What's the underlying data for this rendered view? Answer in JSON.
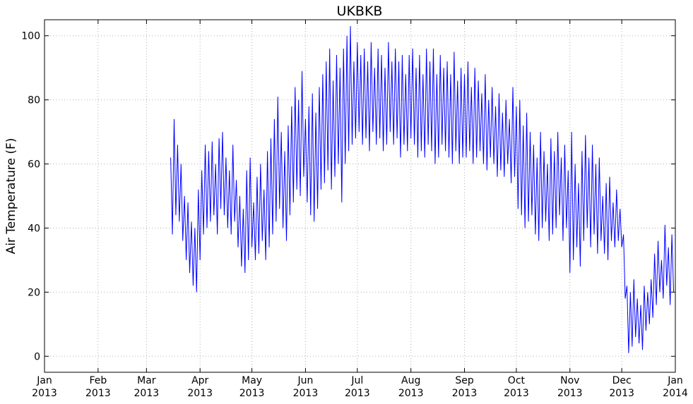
{
  "chart_data": {
    "type": "line",
    "title": "UKBKB",
    "y_label": "Air Temperature (F)",
    "color": "#0000ff",
    "grid": true,
    "xlim": [
      0,
      365
    ],
    "ylim": [
      -5,
      105
    ],
    "xticks": [
      {
        "value": 0,
        "label": "Jan 2013"
      },
      {
        "value": 31,
        "label": "Feb 2013"
      },
      {
        "value": 59,
        "label": "Mar 2013"
      },
      {
        "value": 90,
        "label": "Apr 2013"
      },
      {
        "value": 120,
        "label": "May 2013"
      },
      {
        "value": 151,
        "label": "Jun 2013"
      },
      {
        "value": 181,
        "label": "Jul 2013"
      },
      {
        "value": 212,
        "label": "Aug 2013"
      },
      {
        "value": 243,
        "label": "Sep 2013"
      },
      {
        "value": 273,
        "label": "Oct 2013"
      },
      {
        "value": 304,
        "label": "Nov 2013"
      },
      {
        "value": 334,
        "label": "Dec 2013"
      },
      {
        "value": 365,
        "label": "Jan 2014"
      }
    ],
    "yticks": [
      0,
      20,
      40,
      60,
      80,
      100
    ],
    "x": [
      73,
      74,
      75,
      76,
      77,
      78,
      79,
      80,
      81,
      82,
      83,
      84,
      85,
      86,
      87,
      88,
      89,
      90,
      91,
      92,
      93,
      94,
      95,
      96,
      97,
      98,
      99,
      100,
      101,
      102,
      103,
      104,
      105,
      106,
      107,
      108,
      109,
      110,
      111,
      112,
      113,
      114,
      115,
      116,
      117,
      118,
      119,
      120,
      121,
      122,
      123,
      124,
      125,
      126,
      127,
      128,
      129,
      130,
      131,
      132,
      133,
      134,
      135,
      136,
      137,
      138,
      139,
      140,
      141,
      142,
      143,
      144,
      145,
      146,
      147,
      148,
      149,
      150,
      151,
      152,
      153,
      154,
      155,
      156,
      157,
      158,
      159,
      160,
      161,
      162,
      163,
      164,
      165,
      166,
      167,
      168,
      169,
      170,
      171,
      172,
      173,
      174,
      175,
      176,
      177,
      178,
      179,
      180,
      181,
      182,
      183,
      184,
      185,
      186,
      187,
      188,
      189,
      190,
      191,
      192,
      193,
      194,
      195,
      196,
      197,
      198,
      199,
      200,
      201,
      202,
      203,
      204,
      205,
      206,
      207,
      208,
      209,
      210,
      211,
      212,
      213,
      214,
      215,
      216,
      217,
      218,
      219,
      220,
      221,
      222,
      223,
      224,
      225,
      226,
      227,
      228,
      229,
      230,
      231,
      232,
      233,
      234,
      235,
      236,
      237,
      238,
      239,
      240,
      241,
      242,
      243,
      244,
      245,
      246,
      247,
      248,
      249,
      250,
      251,
      252,
      253,
      254,
      255,
      256,
      257,
      258,
      259,
      260,
      261,
      262,
      263,
      264,
      265,
      266,
      267,
      268,
      269,
      270,
      271,
      272,
      273,
      274,
      275,
      276,
      277,
      278,
      279,
      280,
      281,
      282,
      283,
      284,
      285,
      286,
      287,
      288,
      289,
      290,
      291,
      292,
      293,
      294,
      295,
      296,
      297,
      298,
      299,
      300,
      301,
      302,
      303,
      304,
      305,
      306,
      307,
      308,
      309,
      310,
      311,
      312,
      313,
      314,
      315,
      316,
      317,
      318,
      319,
      320,
      321,
      322,
      323,
      324,
      325,
      326,
      327,
      328,
      329,
      330,
      331,
      332,
      333,
      334,
      335,
      336,
      337,
      338,
      339,
      340,
      341,
      342,
      343,
      344,
      345,
      346,
      347,
      348,
      349,
      350,
      351,
      352,
      353,
      354,
      355,
      356,
      357,
      358,
      359,
      360,
      361,
      362,
      363,
      364
    ],
    "values": [
      62,
      38,
      74,
      44,
      66,
      42,
      60,
      36,
      50,
      30,
      48,
      26,
      42,
      22,
      40,
      20,
      52,
      30,
      58,
      38,
      66,
      40,
      64,
      42,
      67,
      44,
      60,
      38,
      68,
      46,
      70,
      44,
      62,
      40,
      58,
      38,
      66,
      42,
      55,
      34,
      50,
      28,
      46,
      26,
      58,
      30,
      62,
      34,
      48,
      30,
      56,
      32,
      60,
      36,
      52,
      30,
      64,
      34,
      68,
      38,
      74,
      42,
      81,
      46,
      70,
      40,
      64,
      36,
      72,
      44,
      78,
      48,
      84,
      52,
      80,
      50,
      89,
      56,
      74,
      48,
      78,
      44,
      82,
      42,
      76,
      46,
      84,
      52,
      88,
      54,
      92,
      58,
      96,
      52,
      86,
      56,
      94,
      60,
      90,
      48,
      96,
      60,
      100,
      64,
      103,
      66,
      92,
      68,
      98,
      70,
      94,
      66,
      96,
      68,
      92,
      64,
      98,
      70,
      90,
      66,
      96,
      68,
      94,
      64,
      90,
      66,
      98,
      70,
      92,
      66,
      96,
      68,
      92,
      62,
      94,
      66,
      88,
      64,
      94,
      68,
      96,
      66,
      90,
      62,
      94,
      64,
      88,
      62,
      96,
      66,
      92,
      64,
      96,
      60,
      88,
      62,
      94,
      66,
      90,
      64,
      92,
      62,
      88,
      60,
      95,
      64,
      86,
      60,
      90,
      62,
      88,
      62,
      92,
      64,
      84,
      60,
      90,
      62,
      86,
      64,
      82,
      60,
      88,
      58,
      80,
      62,
      84,
      60,
      78,
      56,
      82,
      58,
      76,
      56,
      80,
      60,
      74,
      54,
      84,
      56,
      78,
      46,
      80,
      44,
      72,
      40,
      76,
      42,
      70,
      44,
      66,
      38,
      62,
      36,
      70,
      40,
      64,
      42,
      60,
      36,
      68,
      38,
      64,
      40,
      70,
      44,
      62,
      36,
      66,
      40,
      58,
      26,
      70,
      30,
      60,
      34,
      54,
      28,
      64,
      36,
      69,
      40,
      62,
      34,
      66,
      38,
      60,
      32,
      62,
      36,
      50,
      32,
      54,
      30,
      56,
      36,
      48,
      34,
      52,
      36,
      46,
      34,
      38,
      18,
      22,
      1,
      20,
      3,
      24,
      6,
      18,
      4,
      16,
      2,
      22,
      8,
      20,
      10,
      24,
      12,
      32,
      16,
      36,
      20,
      30,
      18,
      41,
      22,
      34,
      16,
      38,
      20
    ]
  }
}
